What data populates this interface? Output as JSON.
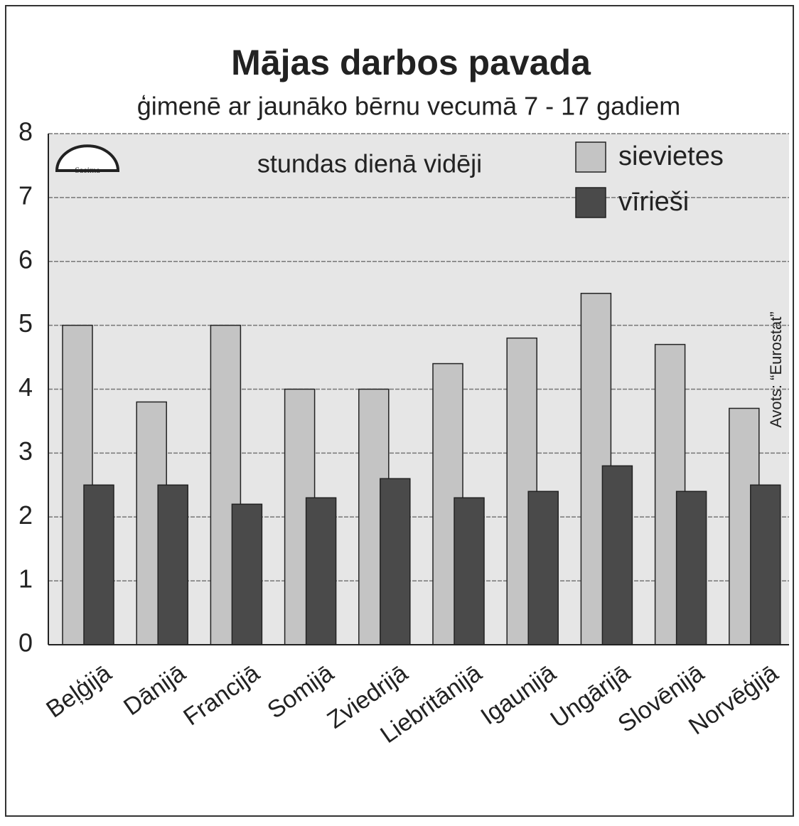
{
  "chart_data": {
    "type": "bar",
    "title": "Mājas darbos pavada",
    "subtitle": "ģimenē ar jaunāko bērnu vecumā 7 - 17 gadiem",
    "annotation": "stundas dienā vidēji",
    "source": "Avots: “Eurostat”",
    "logo": "Saeima",
    "categories": [
      "Beļģijā",
      "Dānijā",
      "Francijā",
      "Somijā",
      "Zviedrijā",
      "Liebritānijā",
      "Igaunijā",
      "Ungārijā",
      "Slovēnijā",
      "Norvēģijā"
    ],
    "series": [
      {
        "name": "sievietes",
        "color": "#c4c4c4",
        "values": [
          5.0,
          3.8,
          5.0,
          4.0,
          4.0,
          4.4,
          4.8,
          5.5,
          4.7,
          3.7
        ]
      },
      {
        "name": "vīrieši",
        "color": "#4a4a4a",
        "values": [
          2.5,
          2.5,
          2.2,
          2.3,
          2.6,
          2.3,
          2.4,
          2.8,
          2.4,
          2.5
        ]
      }
    ],
    "ylim": [
      0,
      8
    ],
    "yticks": [
      0,
      1,
      2,
      3,
      4,
      5,
      6,
      7,
      8
    ],
    "grid": true,
    "legend": "top-right"
  }
}
